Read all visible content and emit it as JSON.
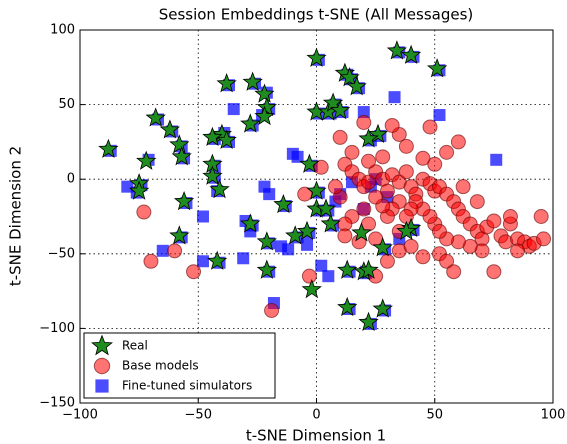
{
  "chart_data": {
    "type": "scatter",
    "title": "Session Embeddings t-SNE (All Messages)",
    "x_label": "t-SNE Dimension 1",
    "y_label": "t-SNE Dimension 2",
    "xlim": [
      -100,
      100
    ],
    "ylim": [
      -150,
      100
    ],
    "xticks": [
      {
        "value": -100,
        "label": "−100"
      },
      {
        "value": -50,
        "label": "−50"
      },
      0,
      50,
      100
    ],
    "yticks": [
      {
        "value": -150,
        "label": "−150"
      },
      {
        "value": -100,
        "label": "−100"
      },
      {
        "value": -50,
        "label": "−50"
      },
      0,
      50,
      100
    ],
    "grid": true,
    "legend": "lower left",
    "series": [
      {
        "name": "Fine-tuned simulators",
        "color": "#0000ff",
        "marker": "square",
        "x": [
          -87,
          -67,
          -71,
          -74,
          -76,
          -61,
          -57,
          -56,
          -55,
          -57,
          -37,
          -26,
          -21,
          -20,
          -23,
          -27,
          -39,
          -43,
          -37,
          -43,
          -43,
          -42,
          -41,
          -20,
          -20,
          -27,
          -13,
          -8,
          -3,
          -2,
          1,
          1,
          1,
          1,
          -4,
          6,
          8,
          11,
          13,
          15,
          18,
          7,
          5,
          14,
          14,
          21,
          23,
          21,
          27,
          23,
          29,
          29,
          35,
          41,
          52,
          41,
          -80,
          -65,
          -48,
          -48,
          -35,
          -22,
          -20,
          -15,
          -12,
          -28,
          -30,
          -10,
          -8,
          2,
          5,
          8,
          10,
          20,
          23,
          30,
          35,
          15,
          25,
          33,
          20,
          52,
          76,
          -18,
          -31
        ],
        "values": [
          19,
          40,
          13,
          -4,
          -9,
          32,
          22,
          14,
          -16,
          -39,
          63,
          64,
          58,
          47,
          43,
          36,
          31,
          27,
          25,
          9,
          1,
          -8,
          -56,
          -43,
          -62,
          -31,
          -18,
          -39,
          -36,
          9,
          80,
          44,
          -9,
          -21,
          -44,
          44,
          50,
          45,
          70,
          67,
          61,
          -31,
          -21,
          -62,
          -87,
          -63,
          -97,
          -62,
          29,
          26,
          -47,
          -88,
          85,
          82,
          73,
          -34,
          -5,
          -48,
          -55,
          -25,
          47,
          -5,
          -10,
          -45,
          -47,
          -35,
          -28,
          17,
          15,
          -58,
          -65,
          -15,
          -10,
          -20,
          -5,
          -12,
          -40,
          -2,
          0,
          55,
          45,
          43,
          13,
          -83,
          -53
        ]
      },
      {
        "name": "Base models",
        "color": "#ff0000",
        "marker": "circle",
        "x": [
          -70,
          -52,
          -60,
          -73,
          -19,
          -3,
          -5,
          2,
          10,
          12,
          15,
          18,
          20,
          22,
          25,
          28,
          30,
          32,
          35,
          38,
          40,
          42,
          45,
          48,
          50,
          52,
          55,
          58,
          60,
          62,
          65,
          68,
          70,
          72,
          75,
          78,
          80,
          82,
          85,
          88,
          90,
          92,
          70,
          65,
          60,
          55,
          52,
          50,
          48,
          45,
          42,
          40,
          38,
          35,
          32,
          30,
          28,
          25,
          20,
          15,
          12,
          10,
          8,
          15,
          22,
          28,
          35,
          38,
          45,
          50,
          55,
          48,
          20,
          32,
          12,
          18,
          25,
          35,
          45,
          55,
          58,
          75,
          85,
          95,
          96,
          60,
          25,
          30,
          40,
          52,
          62,
          68,
          35,
          22,
          82
        ],
        "values": [
          -55,
          -62,
          -48,
          -22,
          -88,
          -65,
          -10,
          8,
          28,
          10,
          5,
          0,
          -5,
          -2,
          5,
          0,
          -8,
          3,
          -2,
          5,
          -5,
          -10,
          0,
          -3,
          -8,
          -5,
          -10,
          -15,
          -20,
          -25,
          -30,
          -35,
          -40,
          -32,
          -28,
          -38,
          -42,
          -30,
          -40,
          -42,
          -45,
          -43,
          -48,
          -45,
          -42,
          -40,
          -50,
          -30,
          -25,
          -20,
          -15,
          -20,
          -25,
          -15,
          -20,
          -25,
          -18,
          -12,
          -20,
          -25,
          -30,
          -12,
          -5,
          18,
          12,
          15,
          30,
          22,
          14,
          10,
          18,
          35,
          38,
          36,
          -38,
          -42,
          -40,
          -48,
          -52,
          -55,
          -62,
          -62,
          -48,
          -25,
          -40,
          25,
          -65,
          -55,
          -45,
          -35,
          -5,
          -15,
          -35,
          -30,
          -25
        ]
      },
      {
        "name": "Real",
        "color": "#1e8c1e",
        "marker": "star",
        "x": [
          -88,
          -68,
          -72,
          -75,
          -75,
          -62,
          -58,
          -57,
          -56,
          -58,
          -38,
          -27,
          -22,
          -21,
          -22,
          -28,
          -40,
          -44,
          -38,
          -44,
          -44,
          -41,
          -42,
          -21,
          -21,
          -28,
          -14,
          -9,
          -4,
          -3,
          0,
          0,
          0,
          0,
          -2,
          5,
          7,
          10,
          12,
          14,
          17,
          6,
          4,
          13,
          13,
          20,
          22,
          22,
          26,
          22,
          28,
          28,
          34,
          40,
          51,
          40,
          38,
          19
        ],
        "values": [
          20,
          41,
          12,
          -3,
          -8,
          33,
          23,
          15,
          -15,
          -38,
          64,
          65,
          57,
          48,
          42,
          37,
          30,
          28,
          26,
          10,
          2,
          -7,
          -55,
          -42,
          -61,
          -30,
          -17,
          -38,
          -35,
          10,
          81,
          45,
          -8,
          -20,
          -74,
          45,
          51,
          46,
          71,
          68,
          62,
          -30,
          -20,
          -61,
          -86,
          -62,
          -96,
          -61,
          30,
          27,
          -46,
          -87,
          86,
          83,
          74,
          -33,
          -35,
          -36
        ]
      }
    ]
  }
}
